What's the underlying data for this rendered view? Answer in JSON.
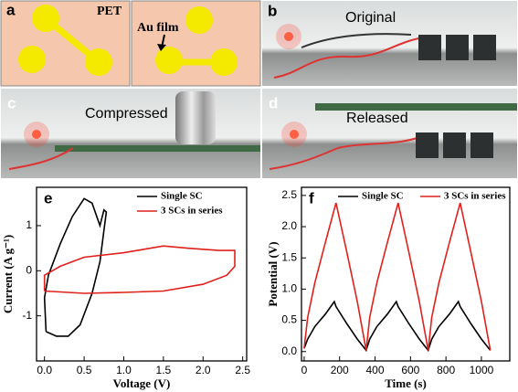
{
  "panels": {
    "a": {
      "label": "a",
      "substrate": "PET",
      "film": "Au film"
    },
    "b": {
      "label": "b",
      "caption": "Original"
    },
    "c": {
      "label": "c",
      "caption": "Compressed"
    },
    "d": {
      "label": "d",
      "caption": "Released"
    }
  },
  "chart_data": [
    {
      "type": "line",
      "label": "e",
      "x_label": "Voltage (V)",
      "y_label": "Current (A g⁻¹)",
      "xlim": [
        -0.1,
        2.55
      ],
      "ylim": [
        -2.0,
        1.85
      ],
      "xticks": [
        {
          "value": 0,
          "label": "0.0"
        },
        {
          "value": 0.5,
          "label": "0.5"
        },
        {
          "value": 1,
          "label": "1.0"
        },
        {
          "value": 1.5,
          "label": "1.5"
        },
        {
          "value": 2,
          "label": "2.0"
        },
        {
          "value": 2.5,
          "label": "2.5"
        }
      ],
      "yticks": [
        -1,
        0,
        1
      ],
      "legend": "upper right",
      "series": [
        {
          "name": "Single SC",
          "color": "#000000",
          "x": [
            0.02,
            0.15,
            0.3,
            0.45,
            0.6,
            0.7,
            0.75,
            0.78,
            0.75,
            0.7,
            0.6,
            0.5,
            0.35,
            0.2,
            0.05,
            0.0,
            0.02
          ],
          "values": [
            -1.35,
            -1.45,
            -1.45,
            -1.2,
            -0.5,
            0.2,
            0.9,
            1.3,
            1.35,
            1.0,
            1.5,
            1.6,
            1.2,
            0.6,
            -0.1,
            -0.6,
            -1.35
          ]
        },
        {
          "name": "3 SCs in series",
          "color": "#e0201b",
          "x": [
            0.0,
            0.5,
            1.0,
            1.5,
            2.0,
            2.3,
            2.4,
            2.4,
            2.2,
            1.8,
            1.5,
            1.0,
            0.5,
            0.2,
            0.0,
            0.0
          ],
          "values": [
            -0.45,
            -0.5,
            -0.48,
            -0.45,
            -0.3,
            -0.1,
            0.1,
            0.45,
            0.45,
            0.5,
            0.55,
            0.4,
            0.3,
            0.1,
            -0.1,
            -0.45
          ]
        }
      ]
    },
    {
      "type": "line",
      "label": "f",
      "x_label": "Time (s)",
      "y_label": "Potential (V)",
      "xlim": [
        -15,
        1160
      ],
      "ylim": [
        -0.15,
        2.63
      ],
      "xticks": [
        0,
        200,
        400,
        600,
        800,
        1000
      ],
      "yticks": [
        {
          "value": 0,
          "label": "0.0"
        },
        {
          "value": 0.5,
          "label": "0.5"
        },
        {
          "value": 1,
          "label": "1.0"
        },
        {
          "value": 1.5,
          "label": "1.5"
        },
        {
          "value": 2,
          "label": "2.0"
        },
        {
          "value": 2.5,
          "label": "2.5"
        }
      ],
      "legend": "upper center",
      "series": [
        {
          "name": "Single SC",
          "color": "#000000",
          "x": [
            0,
            20,
            60,
            120,
            170,
            180,
            240,
            300,
            350,
            370,
            410,
            470,
            520,
            530,
            590,
            650,
            700,
            720,
            760,
            820,
            870,
            880,
            940,
            1000,
            1050
          ],
          "values": [
            0.05,
            0.2,
            0.4,
            0.6,
            0.8,
            0.72,
            0.45,
            0.2,
            0.02,
            0.2,
            0.4,
            0.6,
            0.8,
            0.72,
            0.45,
            0.2,
            0.02,
            0.2,
            0.4,
            0.6,
            0.8,
            0.72,
            0.45,
            0.2,
            0.02
          ]
        },
        {
          "name": "3 SCs in series",
          "color": "#e0201b",
          "x": [
            0,
            20,
            60,
            120,
            180,
            240,
            300,
            350,
            370,
            410,
            470,
            530,
            590,
            650,
            700,
            720,
            760,
            820,
            880,
            940,
            1000,
            1050
          ],
          "values": [
            0.05,
            0.55,
            1.1,
            1.75,
            2.38,
            1.6,
            0.8,
            0.02,
            0.55,
            1.1,
            1.75,
            2.38,
            1.6,
            0.8,
            0.02,
            0.55,
            1.1,
            1.75,
            2.38,
            1.6,
            0.8,
            0.02
          ]
        }
      ]
    }
  ]
}
